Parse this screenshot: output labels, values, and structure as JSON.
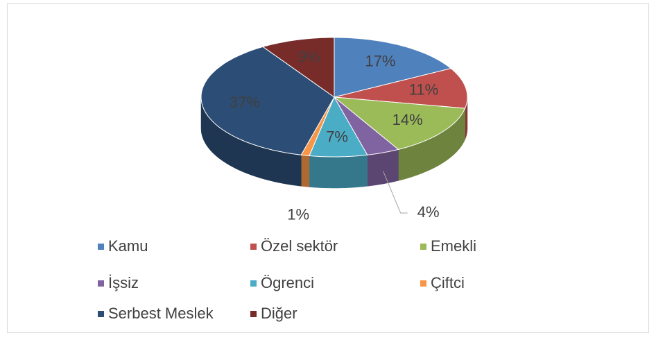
{
  "chart_data": {
    "type": "pie",
    "categories": [
      "Kamu",
      "Özel sektör",
      "Emekli",
      "İşsiz",
      "Ögrenci",
      "Çiftci",
      "Serbest Meslek",
      "Diğer"
    ],
    "values": [
      17,
      11,
      14,
      4,
      7,
      1,
      37,
      9
    ],
    "value_labels": [
      "17%",
      "11%",
      "14%",
      "4%",
      "7%",
      "1%",
      "37%",
      "9%"
    ],
    "colors": [
      "#4f81bd",
      "#c0504d",
      "#9bbb59",
      "#8064a2",
      "#4bacc6",
      "#f79646",
      "#2c4d75",
      "#772c2a"
    ],
    "legend": "bottom"
  }
}
